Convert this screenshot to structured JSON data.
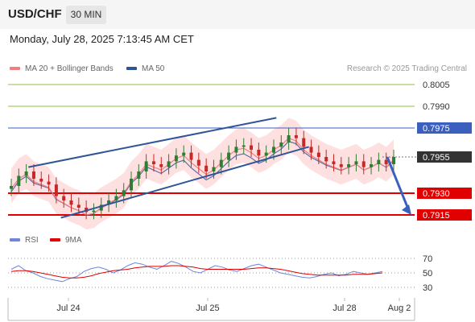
{
  "header": {
    "pair": "USD/CHF",
    "timeframe": "30 MIN"
  },
  "timestamp": "Monday, July 28, 2025 7:13:45 AM CET",
  "legend": {
    "ma_label": "MA 20 + Bollinger Bands",
    "ma50_label": "MA 50",
    "credit": "Research © 2025 Trading Central",
    "rsi_label": "RSI",
    "ma9_label": "9MA"
  },
  "colors": {
    "resistance": "#8bc34a",
    "pivot": "#3a5fbf",
    "support": "#e00000",
    "current": "#333333",
    "bollinger": "#ffd6d6",
    "ma20": "#f08080",
    "ma50": "#2f5597",
    "channel": "#2f5597",
    "candle_up": "#2e7d32",
    "candle_down": "#c62828",
    "rsi": "#6f86d6",
    "ma9": "#e00000"
  },
  "chart_data": {
    "type": "candlestick",
    "title": "USD/CHF",
    "price_levels": [
      {
        "value": 0.8005,
        "label": "0.8005",
        "kind": "resistance"
      },
      {
        "value": 0.799,
        "label": "0.7990",
        "kind": "resistance"
      },
      {
        "value": 0.7975,
        "label": "0.7975",
        "kind": "pivot"
      },
      {
        "value": 0.7955,
        "label": "0.7955",
        "kind": "current"
      },
      {
        "value": 0.793,
        "label": "0.7930",
        "kind": "support"
      },
      {
        "value": 0.7915,
        "label": "0.7915",
        "kind": "support"
      }
    ],
    "price_series": [
      0.7935,
      0.7942,
      0.7945,
      0.794,
      0.7938,
      0.7936,
      0.7928,
      0.7925,
      0.7922,
      0.792,
      0.7917,
      0.7918,
      0.7922,
      0.7925,
      0.7928,
      0.7932,
      0.794,
      0.7945,
      0.7952,
      0.795,
      0.7948,
      0.7952,
      0.7956,
      0.7958,
      0.7953,
      0.7949,
      0.7945,
      0.7948,
      0.7953,
      0.7958,
      0.7962,
      0.7963,
      0.796,
      0.7956,
      0.7958,
      0.7962,
      0.7965,
      0.797,
      0.7968,
      0.7962,
      0.7958,
      0.7955,
      0.7952,
      0.795,
      0.7948,
      0.795,
      0.7952,
      0.7948,
      0.795,
      0.7953,
      0.795,
      0.7955
    ],
    "channel": {
      "upper": [
        [
          0.05,
          0.7948
        ],
        [
          0.66,
          0.7982
        ]
      ],
      "lower": [
        [
          0.13,
          0.7913
        ],
        [
          0.74,
          0.7962
        ]
      ]
    },
    "forecast_arrow": {
      "from": 0.7955,
      "to": 0.7915
    },
    "x_ticks": [
      "Jul 24",
      "Jul 25",
      "Jul 28",
      "Aug 2"
    ],
    "rsi": {
      "ticks": [
        70,
        50,
        30
      ],
      "series": [
        55,
        60,
        53,
        50,
        45,
        42,
        40,
        38,
        42,
        45,
        52,
        56,
        58,
        55,
        50,
        54,
        60,
        64,
        62,
        58,
        55,
        60,
        66,
        63,
        58,
        52,
        50,
        55,
        60,
        58,
        54,
        52,
        56,
        60,
        62,
        58,
        54,
        50,
        48,
        46,
        44,
        43,
        45,
        48,
        50,
        46,
        48,
        52,
        50,
        48,
        50,
        52
      ],
      "ma9": [
        52,
        53,
        53,
        52,
        50,
        48,
        46,
        44,
        43,
        43,
        44,
        46,
        49,
        51,
        53,
        54,
        55,
        57,
        58,
        59,
        59,
        59,
        60,
        60,
        59,
        58,
        56,
        55,
        55,
        55,
        55,
        55,
        55,
        56,
        57,
        57,
        56,
        55,
        53,
        51,
        49,
        48,
        47,
        47,
        47,
        47,
        47,
        48,
        48,
        48,
        49,
        50
      ]
    }
  }
}
